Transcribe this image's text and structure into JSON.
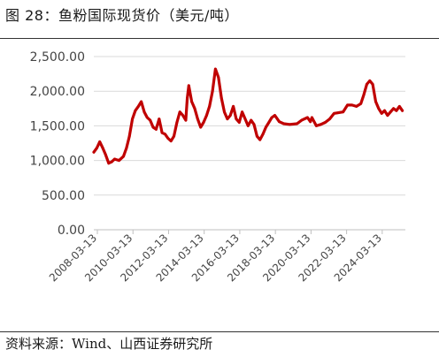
{
  "header": {
    "title": "图 28：鱼粉国际现货价（美元/吨）"
  },
  "footer": {
    "source": "资料来源：Wind、山西证券研究所"
  },
  "chart_data": {
    "type": "line",
    "title": "图 28：鱼粉国际现货价（美元/吨）",
    "xlabel": "",
    "ylabel": "",
    "ylim": [
      0,
      2500
    ],
    "yticks": [
      "0.00",
      "500.00",
      "1,000.00",
      "1,500.00",
      "2,000.00",
      "2,500.00"
    ],
    "xticks": [
      "2008-03-13",
      "2010-03-13",
      "2012-03-13",
      "2014-03-13",
      "2016-03-13",
      "2018-03-13",
      "2020-03-13",
      "2022-03-13",
      "2024-03-13"
    ],
    "grid": true,
    "series": [
      {
        "color": "#c00000",
        "points": [
          [
            "2008-01",
            1120
          ],
          [
            "2008-03",
            1180
          ],
          [
            "2008-05",
            1270
          ],
          [
            "2008-07",
            1180
          ],
          [
            "2008-09",
            1080
          ],
          [
            "2008-11",
            960
          ],
          [
            "2009-01",
            980
          ],
          [
            "2009-03",
            1020
          ],
          [
            "2009-06",
            1000
          ],
          [
            "2009-09",
            1060
          ],
          [
            "2009-11",
            1180
          ],
          [
            "2010-01",
            1350
          ],
          [
            "2010-03",
            1600
          ],
          [
            "2010-05",
            1720
          ],
          [
            "2010-07",
            1780
          ],
          [
            "2010-09",
            1850
          ],
          [
            "2010-11",
            1700
          ],
          [
            "2011-01",
            1620
          ],
          [
            "2011-03",
            1580
          ],
          [
            "2011-05",
            1480
          ],
          [
            "2011-07",
            1450
          ],
          [
            "2011-09",
            1600
          ],
          [
            "2011-11",
            1400
          ],
          [
            "2012-01",
            1380
          ],
          [
            "2012-03",
            1320
          ],
          [
            "2012-05",
            1280
          ],
          [
            "2012-07",
            1350
          ],
          [
            "2012-09",
            1550
          ],
          [
            "2012-11",
            1700
          ],
          [
            "2013-01",
            1650
          ],
          [
            "2013-03",
            1580
          ],
          [
            "2013-04",
            1900
          ],
          [
            "2013-05",
            2080
          ],
          [
            "2013-07",
            1850
          ],
          [
            "2013-09",
            1750
          ],
          [
            "2013-11",
            1600
          ],
          [
            "2014-01",
            1480
          ],
          [
            "2014-03",
            1550
          ],
          [
            "2014-05",
            1650
          ],
          [
            "2014-07",
            1780
          ],
          [
            "2014-09",
            2000
          ],
          [
            "2014-11",
            2320
          ],
          [
            "2015-01",
            2200
          ],
          [
            "2015-03",
            1900
          ],
          [
            "2015-05",
            1700
          ],
          [
            "2015-07",
            1600
          ],
          [
            "2015-09",
            1650
          ],
          [
            "2015-11",
            1780
          ],
          [
            "2016-01",
            1600
          ],
          [
            "2016-03",
            1550
          ],
          [
            "2016-05",
            1700
          ],
          [
            "2016-07",
            1600
          ],
          [
            "2016-09",
            1500
          ],
          [
            "2016-11",
            1580
          ],
          [
            "2017-01",
            1520
          ],
          [
            "2017-03",
            1350
          ],
          [
            "2017-05",
            1300
          ],
          [
            "2017-07",
            1380
          ],
          [
            "2017-09",
            1480
          ],
          [
            "2017-11",
            1550
          ],
          [
            "2018-01",
            1620
          ],
          [
            "2018-03",
            1650
          ],
          [
            "2018-06",
            1560
          ],
          [
            "2018-09",
            1530
          ],
          [
            "2019-01",
            1520
          ],
          [
            "2019-06",
            1530
          ],
          [
            "2019-09",
            1580
          ],
          [
            "2020-01",
            1620
          ],
          [
            "2020-03",
            1560
          ],
          [
            "2020-04",
            1620
          ],
          [
            "2020-07",
            1500
          ],
          [
            "2020-10",
            1520
          ],
          [
            "2021-01",
            1550
          ],
          [
            "2021-04",
            1600
          ],
          [
            "2021-07",
            1680
          ],
          [
            "2022-01",
            1700
          ],
          [
            "2022-04",
            1800
          ],
          [
            "2022-07",
            1800
          ],
          [
            "2022-10",
            1780
          ],
          [
            "2023-01",
            1820
          ],
          [
            "2023-03",
            1950
          ],
          [
            "2023-05",
            2100
          ],
          [
            "2023-07",
            2150
          ],
          [
            "2023-09",
            2100
          ],
          [
            "2023-11",
            1850
          ],
          [
            "2024-01",
            1750
          ],
          [
            "2024-03",
            1680
          ],
          [
            "2024-05",
            1720
          ],
          [
            "2024-07",
            1650
          ],
          [
            "2024-09",
            1700
          ],
          [
            "2024-11",
            1750
          ],
          [
            "2025-01",
            1720
          ],
          [
            "2025-03",
            1780
          ],
          [
            "2025-05",
            1720
          ]
        ]
      }
    ]
  }
}
